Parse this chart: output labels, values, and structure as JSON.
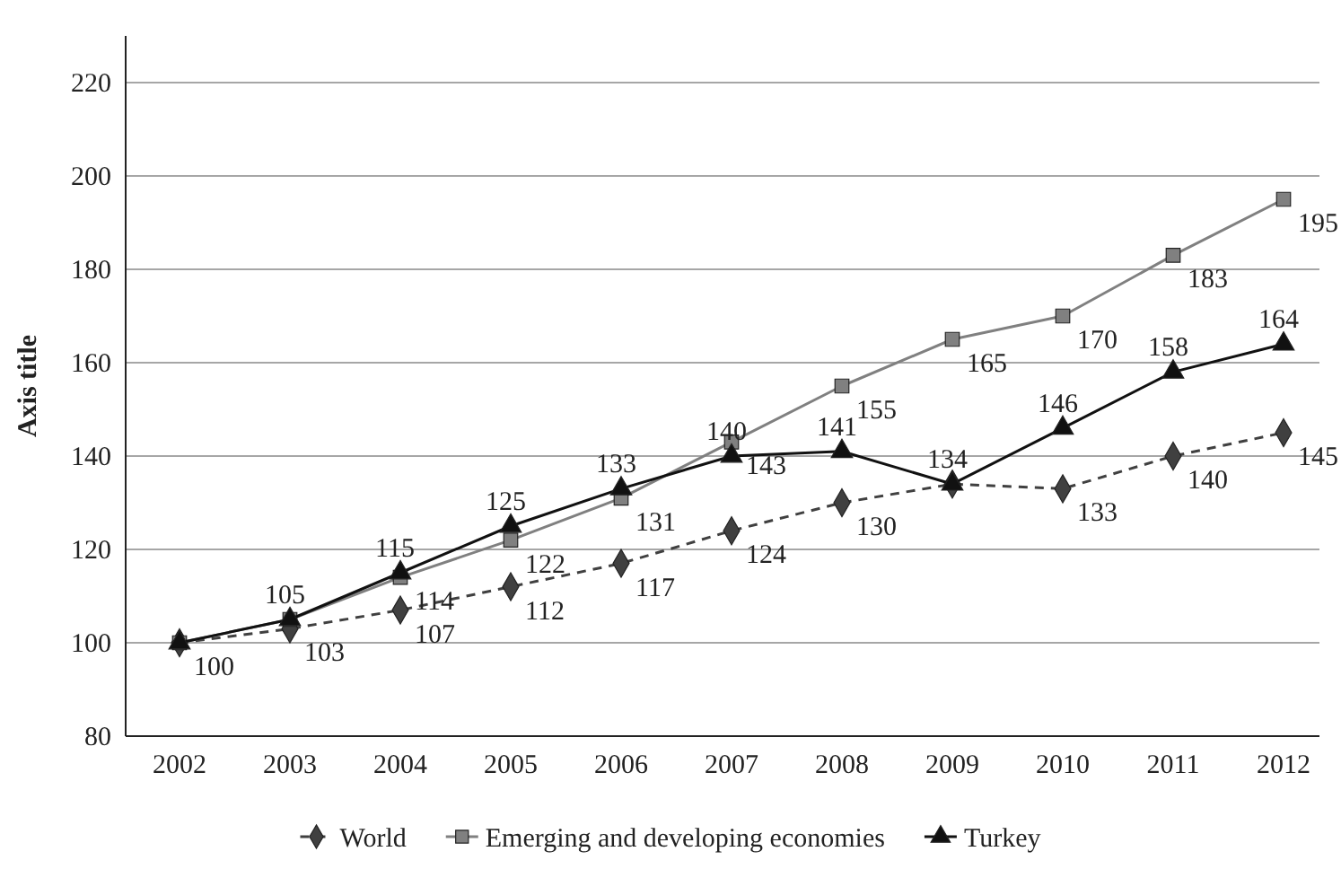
{
  "chart_data": {
    "type": "line",
    "ylabel": "Axis title",
    "categories": [
      "2002",
      "2003",
      "2004",
      "2005",
      "2006",
      "2007",
      "2008",
      "2009",
      "2010",
      "2011",
      "2012"
    ],
    "ylim": [
      80,
      230
    ],
    "yticks": [
      80,
      100,
      120,
      140,
      160,
      180,
      200,
      220
    ],
    "grid": "y",
    "legend": "bottom",
    "series": [
      {
        "name": "World",
        "color": "#404040",
        "marker": "diamond",
        "line_style": "dashed",
        "values": [
          100,
          103,
          107,
          112,
          117,
          124,
          130,
          134,
          133,
          140,
          145
        ],
        "value_labels": [
          "100",
          "103",
          "107",
          "112",
          "117",
          "124",
          "130",
          null,
          "133",
          "140",
          "145"
        ]
      },
      {
        "name": "Emerging and developing economies",
        "color": "#808080",
        "marker": "square",
        "line_style": "solid",
        "values": [
          100,
          105,
          114,
          122,
          131,
          143,
          155,
          165,
          170,
          183,
          195
        ],
        "value_labels": [
          null,
          null,
          "114",
          "122",
          "131",
          "143",
          "155",
          "165",
          "170",
          "183",
          "195"
        ]
      },
      {
        "name": "Turkey",
        "color": "#111111",
        "marker": "triangle",
        "line_style": "solid",
        "values": [
          100,
          105,
          115,
          125,
          133,
          140,
          141,
          134,
          146,
          158,
          164
        ],
        "value_labels": [
          null,
          "105",
          "115",
          "125",
          "133",
          "140",
          "141",
          "134",
          "146",
          "158",
          "164"
        ]
      }
    ]
  }
}
